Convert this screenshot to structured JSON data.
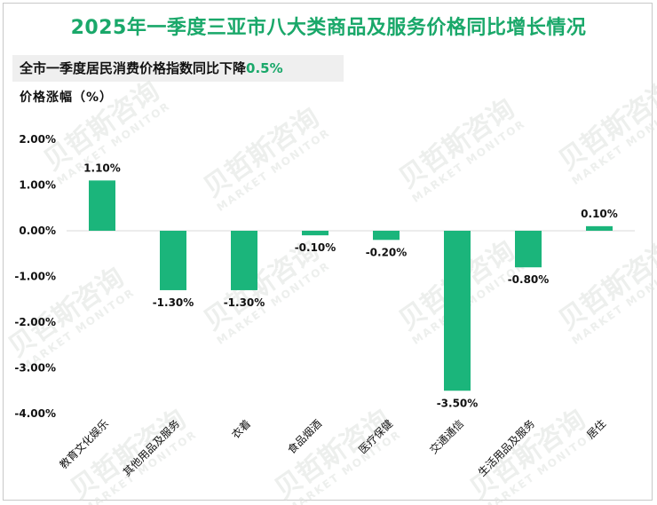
{
  "title": "2025年一季度三亚市八大类商品及服务价格同比增长情况",
  "subtitle": {
    "text": "全市一季度居民消费价格指数同比下降",
    "highlight": "0.5%"
  },
  "watermark": {
    "cn": "贝哲斯咨询",
    "en": "MARKET MONITOR"
  },
  "colors": {
    "bar": "#1bb57b",
    "title": "#1aa86a"
  },
  "chart_data": {
    "type": "bar",
    "ylabel": "价格涨幅（%）",
    "ylim": [
      -4.0,
      2.0
    ],
    "yticks": [
      2.0,
      1.0,
      0.0,
      -1.0,
      -2.0,
      -3.0,
      -4.0
    ],
    "ytick_labels": [
      "2.00%",
      "1.00%",
      "0.00%",
      "-1.00%",
      "-2.00%",
      "-3.00%",
      "-4.00%"
    ],
    "categories": [
      "教育文化娱乐",
      "其他用品及服务",
      "衣着",
      "食品烟酒",
      "医疗保健",
      "交通通信",
      "生活用品及服务",
      "居住"
    ],
    "values": [
      1.1,
      -1.3,
      -1.3,
      -0.1,
      -0.2,
      -3.5,
      -0.8,
      0.1
    ],
    "value_labels": [
      "1.10%",
      "-1.30%",
      "-1.30%",
      "-0.10%",
      "-0.20%",
      "-3.50%",
      "-0.80%",
      "0.10%"
    ],
    "grid": false,
    "legend": "none"
  }
}
